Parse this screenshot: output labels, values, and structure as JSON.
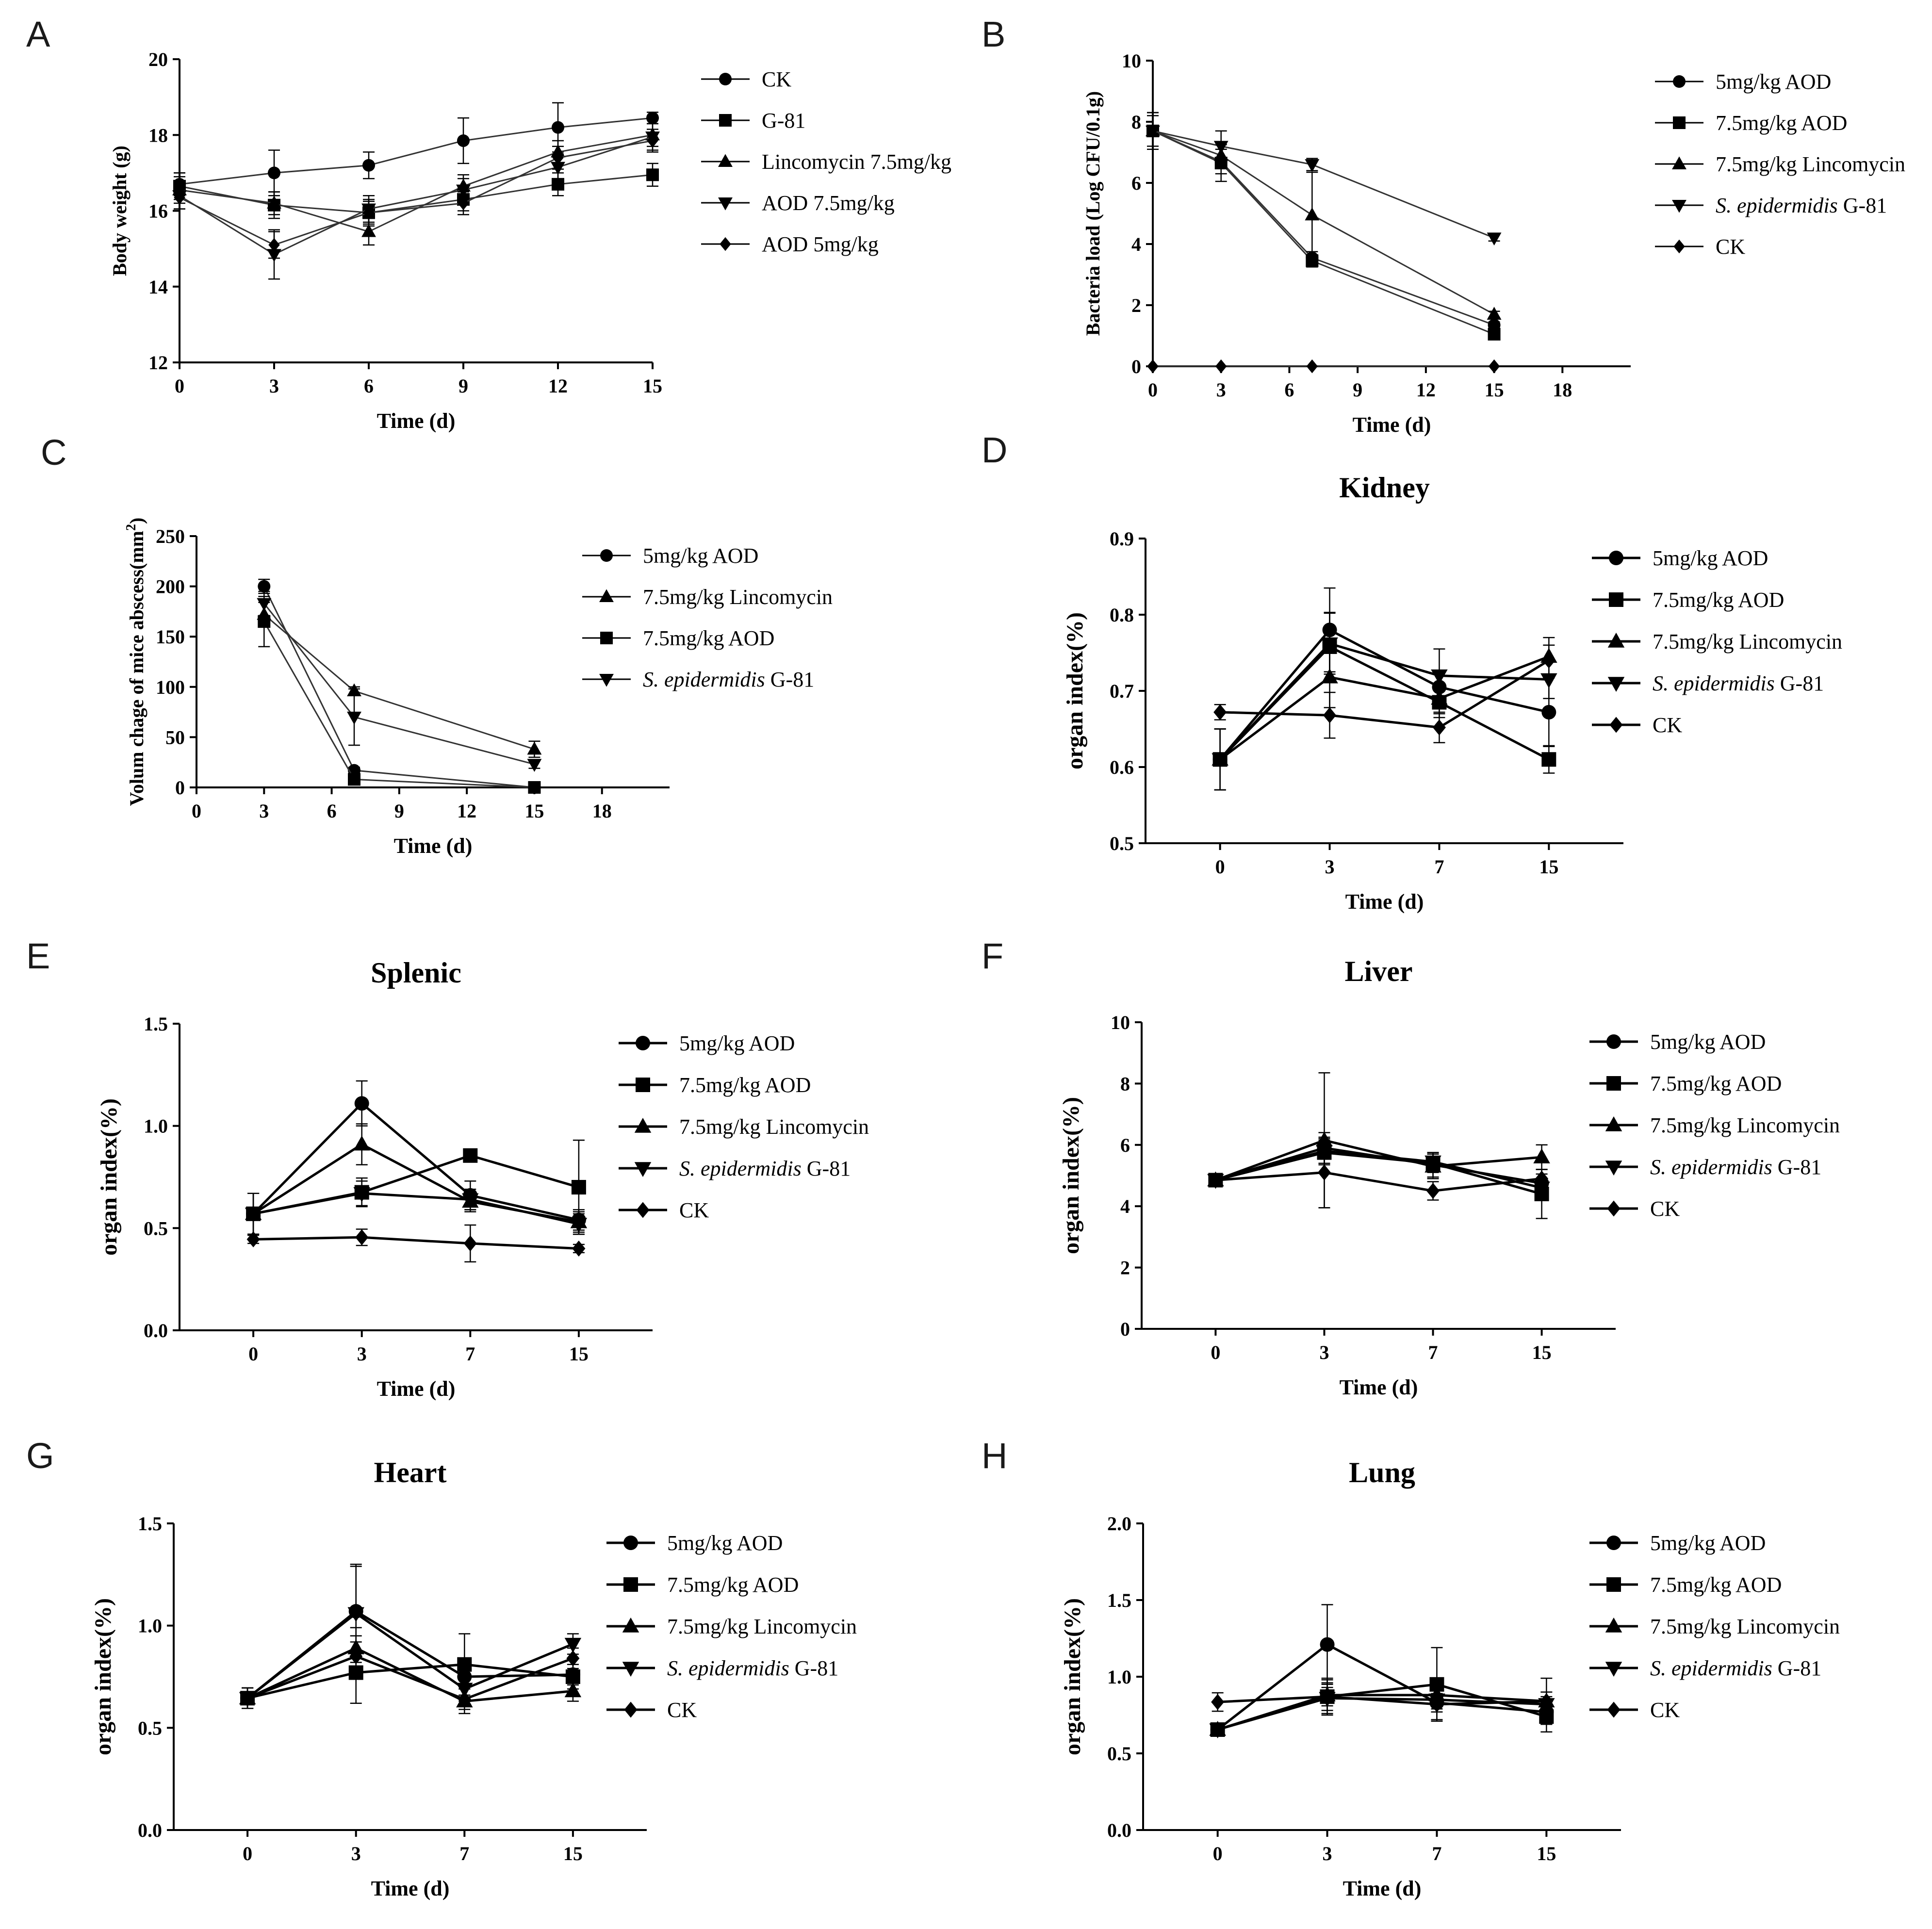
{
  "chart_data": [
    {
      "id": "A",
      "letter": "A",
      "type": "line",
      "title": "",
      "xlabel": "Time (d)",
      "ylabel": "Body weight (g)",
      "xlim": [
        0,
        15
      ],
      "ylim": [
        12,
        20
      ],
      "xticks": [
        0,
        3,
        6,
        9,
        12,
        15
      ],
      "yticks": [
        12,
        14,
        16,
        18,
        20
      ],
      "series": [
        {
          "name": "CK",
          "marker": "circle",
          "x": [
            0,
            3,
            6,
            9,
            12,
            15
          ],
          "values": [
            16.7,
            17.0,
            17.2,
            17.85,
            18.2,
            18.45
          ],
          "err": [
            0.3,
            0.6,
            0.35,
            0.6,
            0.65,
            0.15
          ]
        },
        {
          "name": "G-81",
          "marker": "square",
          "x": [
            0,
            3,
            6,
            9,
            12,
            15
          ],
          "values": [
            16.65,
            16.15,
            15.95,
            16.3,
            16.7,
            16.95
          ],
          "err": [
            0.35,
            0.35,
            0.3,
            0.3,
            0.3,
            0.3
          ]
        },
        {
          "name": "Lincomycin 7.5mg/kg",
          "marker": "triangle-up",
          "x": [
            0,
            3,
            6,
            9,
            12,
            15
          ],
          "values": [
            16.55,
            16.2,
            15.45,
            16.65,
            17.55,
            18.0
          ],
          "err": [
            0.35,
            0.3,
            0.35,
            0.3,
            0.3,
            0.3
          ]
        },
        {
          "name": "AOD 7.5mg/kg",
          "marker": "triangle-down",
          "x": [
            0,
            3,
            6,
            9,
            12,
            15
          ],
          "values": [
            16.4,
            14.85,
            16.05,
            16.55,
            17.15,
            17.95
          ],
          "err": [
            0.35,
            0.65,
            0.35,
            0.3,
            0.35,
            0.35
          ]
        },
        {
          "name": "AOD 5mg/kg",
          "marker": "diamond",
          "x": [
            0,
            3,
            6,
            9,
            12,
            15
          ],
          "values": [
            16.35,
            15.1,
            15.95,
            16.2,
            17.4,
            17.85
          ],
          "err": [
            0.3,
            0.35,
            0.35,
            0.3,
            0.3,
            0.3
          ]
        }
      ]
    },
    {
      "id": "B",
      "letter": "B",
      "type": "line",
      "title": "",
      "xlabel": "Time (d)",
      "ylabel": "Bacteria load (Log CFU/0.1g)",
      "xlim": [
        0,
        21
      ],
      "ylim": [
        0,
        10
      ],
      "xticks": [
        0,
        3,
        6,
        9,
        12,
        15,
        18
      ],
      "yticks": [
        0,
        2,
        4,
        6,
        8,
        10
      ],
      "series": [
        {
          "name": "5mg/kg AOD",
          "marker": "circle",
          "x": [
            0,
            3,
            7,
            15
          ],
          "values": [
            7.7,
            6.7,
            3.55,
            1.35
          ],
          "err": [
            0.6,
            0.4,
            0.2,
            0.1
          ]
        },
        {
          "name": "7.5mg/kg AOD",
          "marker": "square",
          "x": [
            0,
            3,
            7,
            15
          ],
          "values": [
            7.7,
            6.65,
            3.45,
            1.05
          ],
          "err": [
            0.6,
            0.6,
            0.2,
            0.1
          ]
        },
        {
          "name": "7.5mg/kg Lincomycin",
          "marker": "triangle-up",
          "x": [
            0,
            3,
            7,
            15
          ],
          "values": [
            7.7,
            6.9,
            4.95,
            1.7
          ],
          "err": [
            0.5,
            0.4,
            1.4,
            0.1
          ]
        },
        {
          "name": "S. epidermidis G-81",
          "italic": "S. epidermidis",
          "rest": " G-81",
          "marker": "triangle-down",
          "x": [
            0,
            3,
            7,
            15
          ],
          "values": [
            7.7,
            7.2,
            6.6,
            4.2
          ],
          "err": [
            0.6,
            0.5,
            0.2,
            0.1
          ]
        },
        {
          "name": "CK",
          "marker": "diamond",
          "x": [
            0,
            3,
            7,
            15
          ],
          "values": [
            0,
            0,
            0,
            0
          ],
          "err": [
            0,
            0,
            0,
            0
          ]
        }
      ]
    },
    {
      "id": "C",
      "letter": "C",
      "type": "line",
      "title": "",
      "xlabel": "Time (d)",
      "ylabel": "Volum chage of mice abscess(mm",
      "ylabel_sup": "2",
      "ylabel_end": ")",
      "xlim": [
        0,
        21
      ],
      "ylim": [
        0,
        250
      ],
      "xticks": [
        0,
        3,
        6,
        9,
        12,
        15,
        18
      ],
      "yticks": [
        0,
        50,
        100,
        150,
        200,
        250
      ],
      "series": [
        {
          "name": "5mg/kg AOD",
          "marker": "circle",
          "x": [
            3,
            7,
            15
          ],
          "values": [
            200,
            17,
            0
          ],
          "err": [
            7,
            3,
            1
          ]
        },
        {
          "name": "7.5mg/kg Lincomycin",
          "marker": "triangle-up",
          "x": [
            3,
            7,
            15
          ],
          "values": [
            172,
            96,
            38
          ],
          "err": [
            12,
            4,
            8
          ]
        },
        {
          "name": "7.5mg/kg AOD",
          "marker": "square",
          "x": [
            3,
            7,
            15
          ],
          "values": [
            165,
            8,
            0
          ],
          "err": [
            25,
            3,
            1
          ]
        },
        {
          "name": "S. epidermidis G-81",
          "italic": "S. epidermidis",
          "rest": " G-81",
          "marker": "triangle-down",
          "x": [
            3,
            7,
            15
          ],
          "values": [
            183,
            70,
            23
          ],
          "err": [
            12,
            28,
            4
          ]
        }
      ]
    },
    {
      "id": "D",
      "letter": "D",
      "type": "line",
      "title": "Kidney",
      "xlabel": "Time (d)",
      "ylabel": "organ index(%)",
      "xcategories": [
        "0",
        "3",
        "7",
        "15"
      ],
      "ylim": [
        0.5,
        0.9
      ],
      "yticks": [
        0.5,
        0.6,
        0.7,
        0.8,
        0.9
      ],
      "ytickfmt": 1,
      "series": [
        {
          "name": "5mg/kg AOD",
          "marker": "circle",
          "values": [
            0.61,
            0.78,
            0.705,
            0.672
          ],
          "err": [
            0.04,
            0.055,
            0.02,
            0.045
          ]
        },
        {
          "name": "7.5mg/kg AOD",
          "marker": "square",
          "values": [
            0.61,
            0.758,
            0.685,
            0.61
          ],
          "err": [
            0.04,
            0.045,
            0.02,
            0.018
          ]
        },
        {
          "name": "7.5mg/kg Lincomycin",
          "marker": "triangle-up",
          "values": [
            0.61,
            0.718,
            0.69,
            0.745
          ],
          "err": [
            0.04,
            0.04,
            0.02,
            0.025
          ]
        },
        {
          "name": "S. epidermidis G-81",
          "italic": "S. epidermidis",
          "rest": " G-81",
          "marker": "triangle-down",
          "values": [
            0.61,
            0.762,
            0.72,
            0.715
          ],
          "err": [
            0.04,
            0.04,
            0.035,
            0.025
          ]
        },
        {
          "name": "CK",
          "marker": "diamond",
          "values": [
            0.672,
            0.668,
            0.652,
            0.74
          ],
          "err": [
            0.01,
            0.03,
            0.02,
            0.02
          ]
        }
      ]
    },
    {
      "id": "E",
      "letter": "E",
      "type": "line",
      "title": "Splenic",
      "xlabel": "Time (d)",
      "ylabel": "organ index(%)",
      "xcategories": [
        "0",
        "3",
        "7",
        "15"
      ],
      "ylim": [
        0,
        1.5
      ],
      "yticks": [
        0,
        0.5,
        1.0,
        1.5
      ],
      "ytickfmt": 1,
      "series": [
        {
          "name": "5mg/kg AOD",
          "marker": "circle",
          "values": [
            0.57,
            1.11,
            0.66,
            0.54
          ],
          "err": [
            0.1,
            0.11,
            0.07,
            0.05
          ]
        },
        {
          "name": "7.5mg/kg AOD",
          "marker": "square",
          "values": [
            0.57,
            0.675,
            0.855,
            0.7
          ],
          "err": [
            0.1,
            0.07,
            0.03,
            0.23
          ]
        },
        {
          "name": "7.5mg/kg Lincomycin",
          "marker": "triangle-up",
          "values": [
            0.57,
            0.91,
            0.63,
            0.53
          ],
          "err": [
            0.1,
            0.1,
            0.05,
            0.05
          ]
        },
        {
          "name": "S. epidermidis G-81",
          "italic": "S. epidermidis",
          "rest": " G-81",
          "marker": "triangle-down",
          "values": [
            0.57,
            0.67,
            0.64,
            0.52
          ],
          "err": [
            0.1,
            0.06,
            0.05,
            0.05
          ]
        },
        {
          "name": "CK",
          "marker": "diamond",
          "values": [
            0.445,
            0.455,
            0.425,
            0.4
          ],
          "err": [
            0.02,
            0.04,
            0.09,
            0.02
          ]
        }
      ]
    },
    {
      "id": "F",
      "letter": "F",
      "type": "line",
      "title": "Liver",
      "xlabel": "Time (d)",
      "ylabel": "organ index(%)",
      "xcategories": [
        "0",
        "3",
        "7",
        "15"
      ],
      "ylim": [
        0,
        10
      ],
      "yticks": [
        0,
        2,
        4,
        6,
        8,
        10
      ],
      "ytickfmt": 0,
      "series": [
        {
          "name": "5mg/kg AOD",
          "marker": "circle",
          "values": [
            4.85,
            5.9,
            5.35,
            4.75
          ],
          "err": [
            0.1,
            0.5,
            0.4,
            0.3
          ]
        },
        {
          "name": "7.5mg/kg AOD",
          "marker": "square",
          "values": [
            4.85,
            5.75,
            5.4,
            4.4
          ],
          "err": [
            0.1,
            0.4,
            0.3,
            0.8
          ]
        },
        {
          "name": "7.5mg/kg Lincomycin",
          "marker": "triangle-up",
          "values": [
            4.85,
            6.15,
            5.3,
            5.6
          ],
          "err": [
            0.1,
            2.2,
            0.4,
            0.4
          ]
        },
        {
          "name": "S. epidermidis G-81",
          "italic": "S. epidermidis",
          "rest": " G-81",
          "marker": "triangle-down",
          "values": [
            4.85,
            5.8,
            5.45,
            4.6
          ],
          "err": [
            0.1,
            0.4,
            0.3,
            0.3
          ]
        },
        {
          "name": "CK",
          "marker": "diamond",
          "values": [
            4.85,
            5.1,
            4.5,
            4.9
          ],
          "err": [
            0.1,
            1.15,
            0.3,
            0.3
          ]
        }
      ]
    },
    {
      "id": "G",
      "letter": "G",
      "type": "line",
      "title": "Heart",
      "xlabel": "Time (d)",
      "ylabel": "organ index(%)",
      "xcategories": [
        "0",
        "3",
        "7",
        "15"
      ],
      "ylim": [
        0,
        1.5
      ],
      "yticks": [
        0,
        0.5,
        1.0,
        1.5
      ],
      "ytickfmt": 1,
      "series": [
        {
          "name": "5mg/kg AOD",
          "marker": "circle",
          "values": [
            0.645,
            1.07,
            0.75,
            0.76
          ],
          "err": [
            0.05,
            0.22,
            0.05,
            0.05
          ]
        },
        {
          "name": "7.5mg/kg AOD",
          "marker": "square",
          "values": [
            0.645,
            0.77,
            0.81,
            0.75
          ],
          "err": [
            0.05,
            0.15,
            0.15,
            0.06
          ]
        },
        {
          "name": "7.5mg/kg Lincomycin",
          "marker": "triangle-up",
          "values": [
            0.645,
            0.89,
            0.63,
            0.68
          ],
          "err": [
            0.05,
            0.1,
            0.06,
            0.05
          ]
        },
        {
          "name": "S. epidermidis G-81",
          "italic": "S. epidermidis",
          "rest": " G-81",
          "marker": "triangle-down",
          "values": [
            0.645,
            1.06,
            0.69,
            0.91
          ],
          "err": [
            0.05,
            0.24,
            0.06,
            0.05
          ]
        },
        {
          "name": "CK",
          "marker": "diamond",
          "values": [
            0.645,
            0.85,
            0.64,
            0.84
          ],
          "err": [
            0.05,
            0.1,
            0.05,
            0.05
          ]
        }
      ]
    },
    {
      "id": "H",
      "letter": "H",
      "type": "line",
      "title": "Lung",
      "xlabel": "Time (d)",
      "ylabel": "organ index(%)",
      "xcategories": [
        "0",
        "3",
        "7",
        "15"
      ],
      "ylim": [
        0,
        2.0
      ],
      "yticks": [
        0,
        0.5,
        1.0,
        1.5,
        2.0
      ],
      "ytickfmt": 1,
      "series": [
        {
          "name": "5mg/kg AOD",
          "marker": "circle",
          "values": [
            0.655,
            1.21,
            0.83,
            0.77
          ],
          "err": [
            0.03,
            0.26,
            0.06,
            0.08
          ]
        },
        {
          "name": "7.5mg/kg AOD",
          "marker": "square",
          "values": [
            0.655,
            0.87,
            0.95,
            0.74
          ],
          "err": [
            0.03,
            0.12,
            0.24,
            0.1
          ]
        },
        {
          "name": "7.5mg/kg Lincomycin",
          "marker": "triangle-up",
          "values": [
            0.655,
            0.88,
            0.88,
            0.84
          ],
          "err": [
            0.03,
            0.1,
            0.06,
            0.15
          ]
        },
        {
          "name": "S. epidermidis G-81",
          "italic": "S. epidermidis",
          "rest": " G-81",
          "marker": "triangle-down",
          "values": [
            0.655,
            0.86,
            0.85,
            0.82
          ],
          "err": [
            0.03,
            0.1,
            0.06,
            0.05
          ]
        },
        {
          "name": "CK",
          "marker": "diamond",
          "values": [
            0.835,
            0.87,
            0.82,
            0.84
          ],
          "err": [
            0.06,
            0.06,
            0.1,
            0.06
          ]
        }
      ]
    }
  ]
}
